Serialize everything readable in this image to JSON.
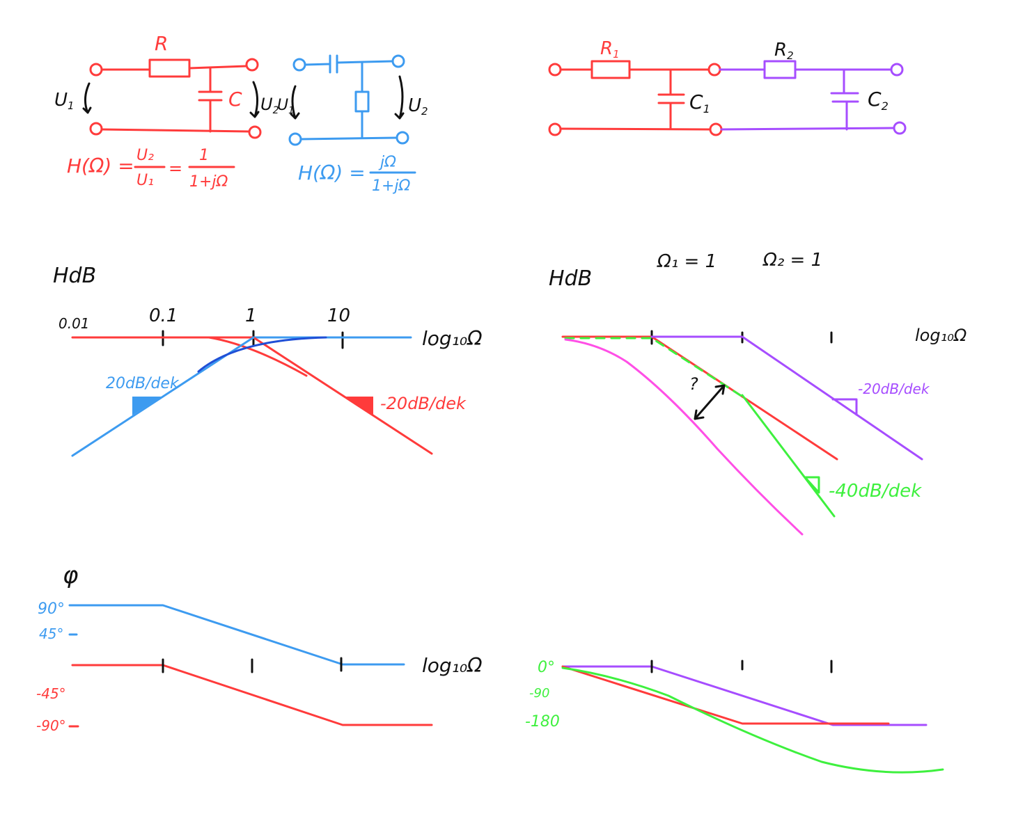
{
  "colors": {
    "red": "#ff3b3b",
    "blue": "#3d9bf0",
    "dark_blue": "#1f4fd6",
    "purple": "#a64dff",
    "green": "#3ef03e",
    "pink": "#ff4fe6",
    "black": "#111111"
  },
  "circuit_rc": {
    "resistor": "R",
    "capacitor": "C",
    "u1": "U",
    "u1_sub": "1",
    "u2": "U",
    "u2_sub": "2",
    "formula_lhs": "H(Ω) =",
    "formula_num1": "U₂",
    "formula_den1": "U₁",
    "formula_eq": "=",
    "formula_num2": "1",
    "formula_den2": "1+jΩ"
  },
  "circuit_cr": {
    "u1": "U",
    "u1_sub": "1",
    "u2": "U",
    "u2_sub": "2",
    "formula_lhs": "H(Ω) =",
    "formula_num": "jΩ",
    "formula_den": "1+jΩ"
  },
  "circuit_double": {
    "r1": "R",
    "r1_sub": "1",
    "r2": "R",
    "r2_sub": "2",
    "c1": "C",
    "c1_sub": "1",
    "c2": "C",
    "c2_sub": "2"
  },
  "bode_left": {
    "ylabel": "HdB",
    "xlabel": "log₁₀Ω",
    "ticks": [
      "0.01",
      "0.1",
      "1",
      "10"
    ],
    "slope_up": "20dB/dek",
    "slope_down": "-20dB/dek"
  },
  "bode_right": {
    "ylabel": "HdB",
    "omega1": "Ω₁ = 1",
    "omega2": "Ω₂ = 1",
    "xlabel": "log₁₀Ω",
    "slope_purple": "-20dB/dek",
    "slope_green": "-40dB/dek",
    "question": "?"
  },
  "phase_left": {
    "ylabel": "φ",
    "xlabel": "log₁₀Ω",
    "pos90": "90°",
    "pos45": "45°",
    "neg45": "-45°",
    "neg90": "-90°"
  },
  "phase_right": {
    "zero": "0°",
    "neg90": "-90",
    "neg180": "-180"
  }
}
